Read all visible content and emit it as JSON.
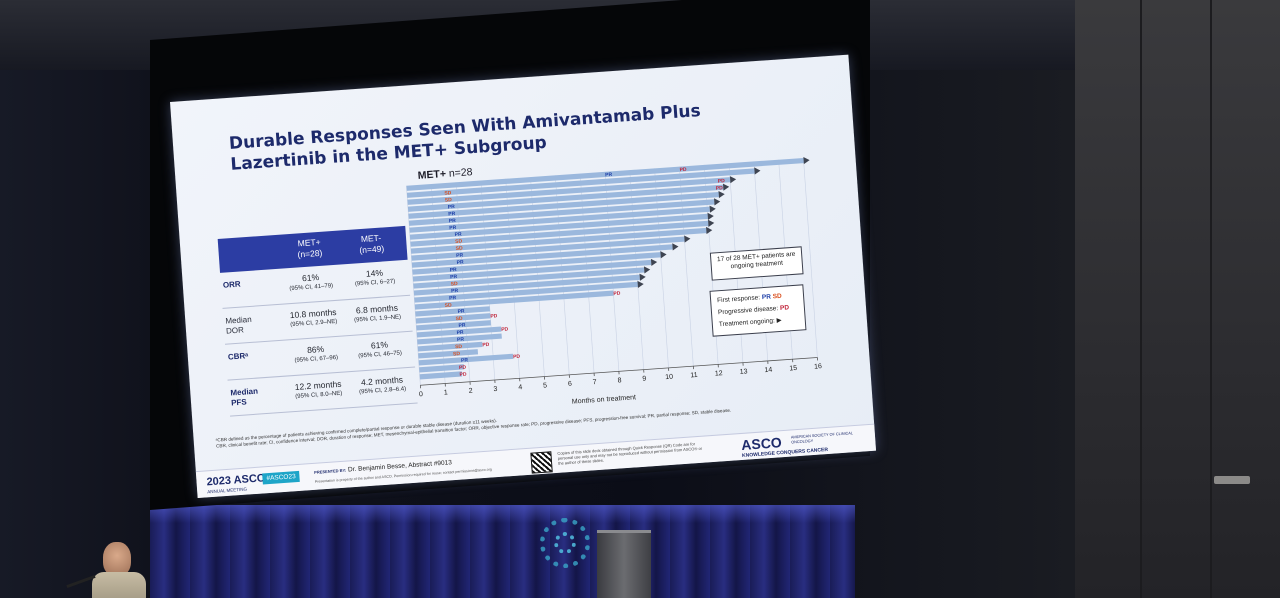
{
  "slide": {
    "title": "Durable Responses Seen With Amivantamab Plus Lazertinib in the MET+ Subgroup",
    "chart_title": "MET+",
    "chart_title_n": "n=28"
  },
  "table": {
    "headers": [
      {
        "name": "MET+",
        "n": "(n=28)"
      },
      {
        "name": "MET-",
        "n": "(n=49)"
      }
    ],
    "rows": [
      {
        "label": "ORR",
        "bold": true,
        "met_pos": "61%",
        "met_pos_ci": "(95% CI, 41–79)",
        "met_neg": "14%",
        "met_neg_ci": "(95% CI, 6–27)"
      },
      {
        "label": "Median DOR",
        "bold": false,
        "met_pos": "10.8 months",
        "met_pos_ci": "(95% CI, 2.9–NE)",
        "met_neg": "6.8 months",
        "met_neg_ci": "(95% CI, 1.9–NE)"
      },
      {
        "label": "CBRᵃ",
        "bold": true,
        "met_pos": "86%",
        "met_pos_ci": "(95% CI, 67–96)",
        "met_neg": "61%",
        "met_neg_ci": "(95% CI, 46–75)"
      },
      {
        "label": "Median PFS",
        "bold": true,
        "met_pos": "12.2 months",
        "met_pos_ci": "(95% CI, 8.0–NE)",
        "met_neg": "4.2 months",
        "met_neg_ci": "(95% CI, 2.8–6.4)"
      }
    ]
  },
  "chart_data": {
    "type": "bar",
    "orientation": "horizontal",
    "xlabel": "Months on treatment",
    "xlim": [
      0,
      16
    ],
    "xticks": [
      0,
      1,
      2,
      3,
      4,
      5,
      6,
      7,
      8,
      9,
      10,
      11,
      12,
      13,
      14,
      15,
      16
    ],
    "bar_color": "#9bb8dd",
    "pr_color": "#1e3fa8",
    "sd_color": "#d94f1e",
    "pd_color": "#c0243a",
    "patients": [
      {
        "duration": 16.0,
        "first_response": "PR",
        "first_response_at": 8.0,
        "pd_at": 11.0,
        "ongoing": true
      },
      {
        "duration": 14.0,
        "first_response": "SD",
        "first_response_at": 1.5,
        "pd_at": null,
        "ongoing": true
      },
      {
        "duration": 13.0,
        "first_response": "SD",
        "first_response_at": 1.5,
        "pd_at": 12.5,
        "ongoing": true
      },
      {
        "duration": 12.7,
        "first_response": "PR",
        "first_response_at": 1.6,
        "pd_at": 12.4,
        "ongoing": true
      },
      {
        "duration": 12.5,
        "first_response": "PR",
        "first_response_at": 1.6,
        "pd_at": null,
        "ongoing": true
      },
      {
        "duration": 12.3,
        "first_response": "PR",
        "first_response_at": 1.6,
        "pd_at": null,
        "ongoing": true
      },
      {
        "duration": 12.1,
        "first_response": "PR",
        "first_response_at": 1.6,
        "pd_at": null,
        "ongoing": true
      },
      {
        "duration": 12.0,
        "first_response": "PR",
        "first_response_at": 1.8,
        "pd_at": null,
        "ongoing": true
      },
      {
        "duration": 12.0,
        "first_response": "SD",
        "first_response_at": 1.8,
        "pd_at": null,
        "ongoing": true
      },
      {
        "duration": 11.9,
        "first_response": "SD",
        "first_response_at": 1.8,
        "pd_at": null,
        "ongoing": true
      },
      {
        "duration": 11.0,
        "first_response": "PR",
        "first_response_at": 1.8,
        "pd_at": null,
        "ongoing": true
      },
      {
        "duration": 10.5,
        "first_response": "PR",
        "first_response_at": 1.8,
        "pd_at": null,
        "ongoing": true
      },
      {
        "duration": 10.0,
        "first_response": "PR",
        "first_response_at": 1.5,
        "pd_at": null,
        "ongoing": true
      },
      {
        "duration": 9.6,
        "first_response": "PR",
        "first_response_at": 1.5,
        "pd_at": null,
        "ongoing": true
      },
      {
        "duration": 9.3,
        "first_response": "SD",
        "first_response_at": 1.5,
        "pd_at": null,
        "ongoing": true
      },
      {
        "duration": 9.1,
        "first_response": "PR",
        "first_response_at": 1.5,
        "pd_at": null,
        "ongoing": true
      },
      {
        "duration": 9.0,
        "first_response": "PR",
        "first_response_at": 1.4,
        "pd_at": null,
        "ongoing": true
      },
      {
        "duration": 8.0,
        "first_response": "SD",
        "first_response_at": 1.2,
        "pd_at": 8.0,
        "ongoing": false
      },
      {
        "duration": 3.0,
        "first_response": "PR",
        "first_response_at": 1.7,
        "pd_at": null,
        "ongoing": false
      },
      {
        "duration": 3.0,
        "first_response": "SD",
        "first_response_at": 1.6,
        "pd_at": 3.0,
        "ongoing": false
      },
      {
        "duration": 3.0,
        "first_response": "PR",
        "first_response_at": 1.7,
        "pd_at": null,
        "ongoing": false
      },
      {
        "duration": 3.4,
        "first_response": "PR",
        "first_response_at": 1.6,
        "pd_at": 3.4,
        "ongoing": false
      },
      {
        "duration": 3.4,
        "first_response": "PR",
        "first_response_at": 1.6,
        "pd_at": null,
        "ongoing": false
      },
      {
        "duration": 2.6,
        "first_response": "SD",
        "first_response_at": 1.5,
        "pd_at": 2.6,
        "ongoing": false
      },
      {
        "duration": 2.4,
        "first_response": "SD",
        "first_response_at": 1.4,
        "pd_at": null,
        "ongoing": false
      },
      {
        "duration": 3.8,
        "first_response": "PR",
        "first_response_at": 1.7,
        "pd_at": 3.8,
        "ongoing": false
      },
      {
        "duration": 1.8,
        "first_response": "PD",
        "first_response_at": null,
        "pd_at": 1.6,
        "ongoing": false
      },
      {
        "duration": 1.7,
        "first_response": "PD",
        "first_response_at": null,
        "pd_at": 1.6,
        "ongoing": false
      }
    ]
  },
  "ongoing_box": "17 of 28 MET+ patients are ongoing treatment",
  "legend": {
    "first_response_label": "First response:",
    "first_response_pr": "PR",
    "first_response_sd": "SD",
    "progressive_label": "Progressive disease:",
    "progressive_pd": "PD",
    "ongoing_label": "Treatment ongoing:"
  },
  "footnote": {
    "line1": "ᵃCBR defined as the percentage of patients achieving confirmed complete/partial response or durable stable disease (duration ≥11 weeks).",
    "line2": "CBR, clinical benefit rate; CI, confidence interval; DOR, duration of response; MET, mesenchymal-epithelial transition factor; ORR, objective response rate; PD, progressive disease; PFS, progression-free survival; PR, partial response; SD, stable disease."
  },
  "footer": {
    "meeting": "2023 ASCO",
    "meeting_sub": "ANNUAL MEETING",
    "hashtag": "#ASCO23",
    "presented_prefix": "PRESENTED BY:",
    "presenter": "Dr. Benjamin Besse, Abstract #9013",
    "presented_sub": "Presentation is property of the author and ASCO. Permission required for reuse; contact permissions@asco.org",
    "qr_text": "Copies of this slide deck obtained through Quick Response (QR) Code are for personal use only and may not be reproduced without permission from ASCO® or the author of these slides.",
    "brand": "ASCO",
    "society": "AMERICAN SOCIETY OF CLINICAL ONCOLOGY",
    "tagline": "KNOWLEDGE CONQUERS CANCER"
  },
  "colors": {
    "slide_title": "#1d2a6b",
    "table_header": "#2c3da3",
    "hashtag_bg": "#1ea5c8"
  }
}
